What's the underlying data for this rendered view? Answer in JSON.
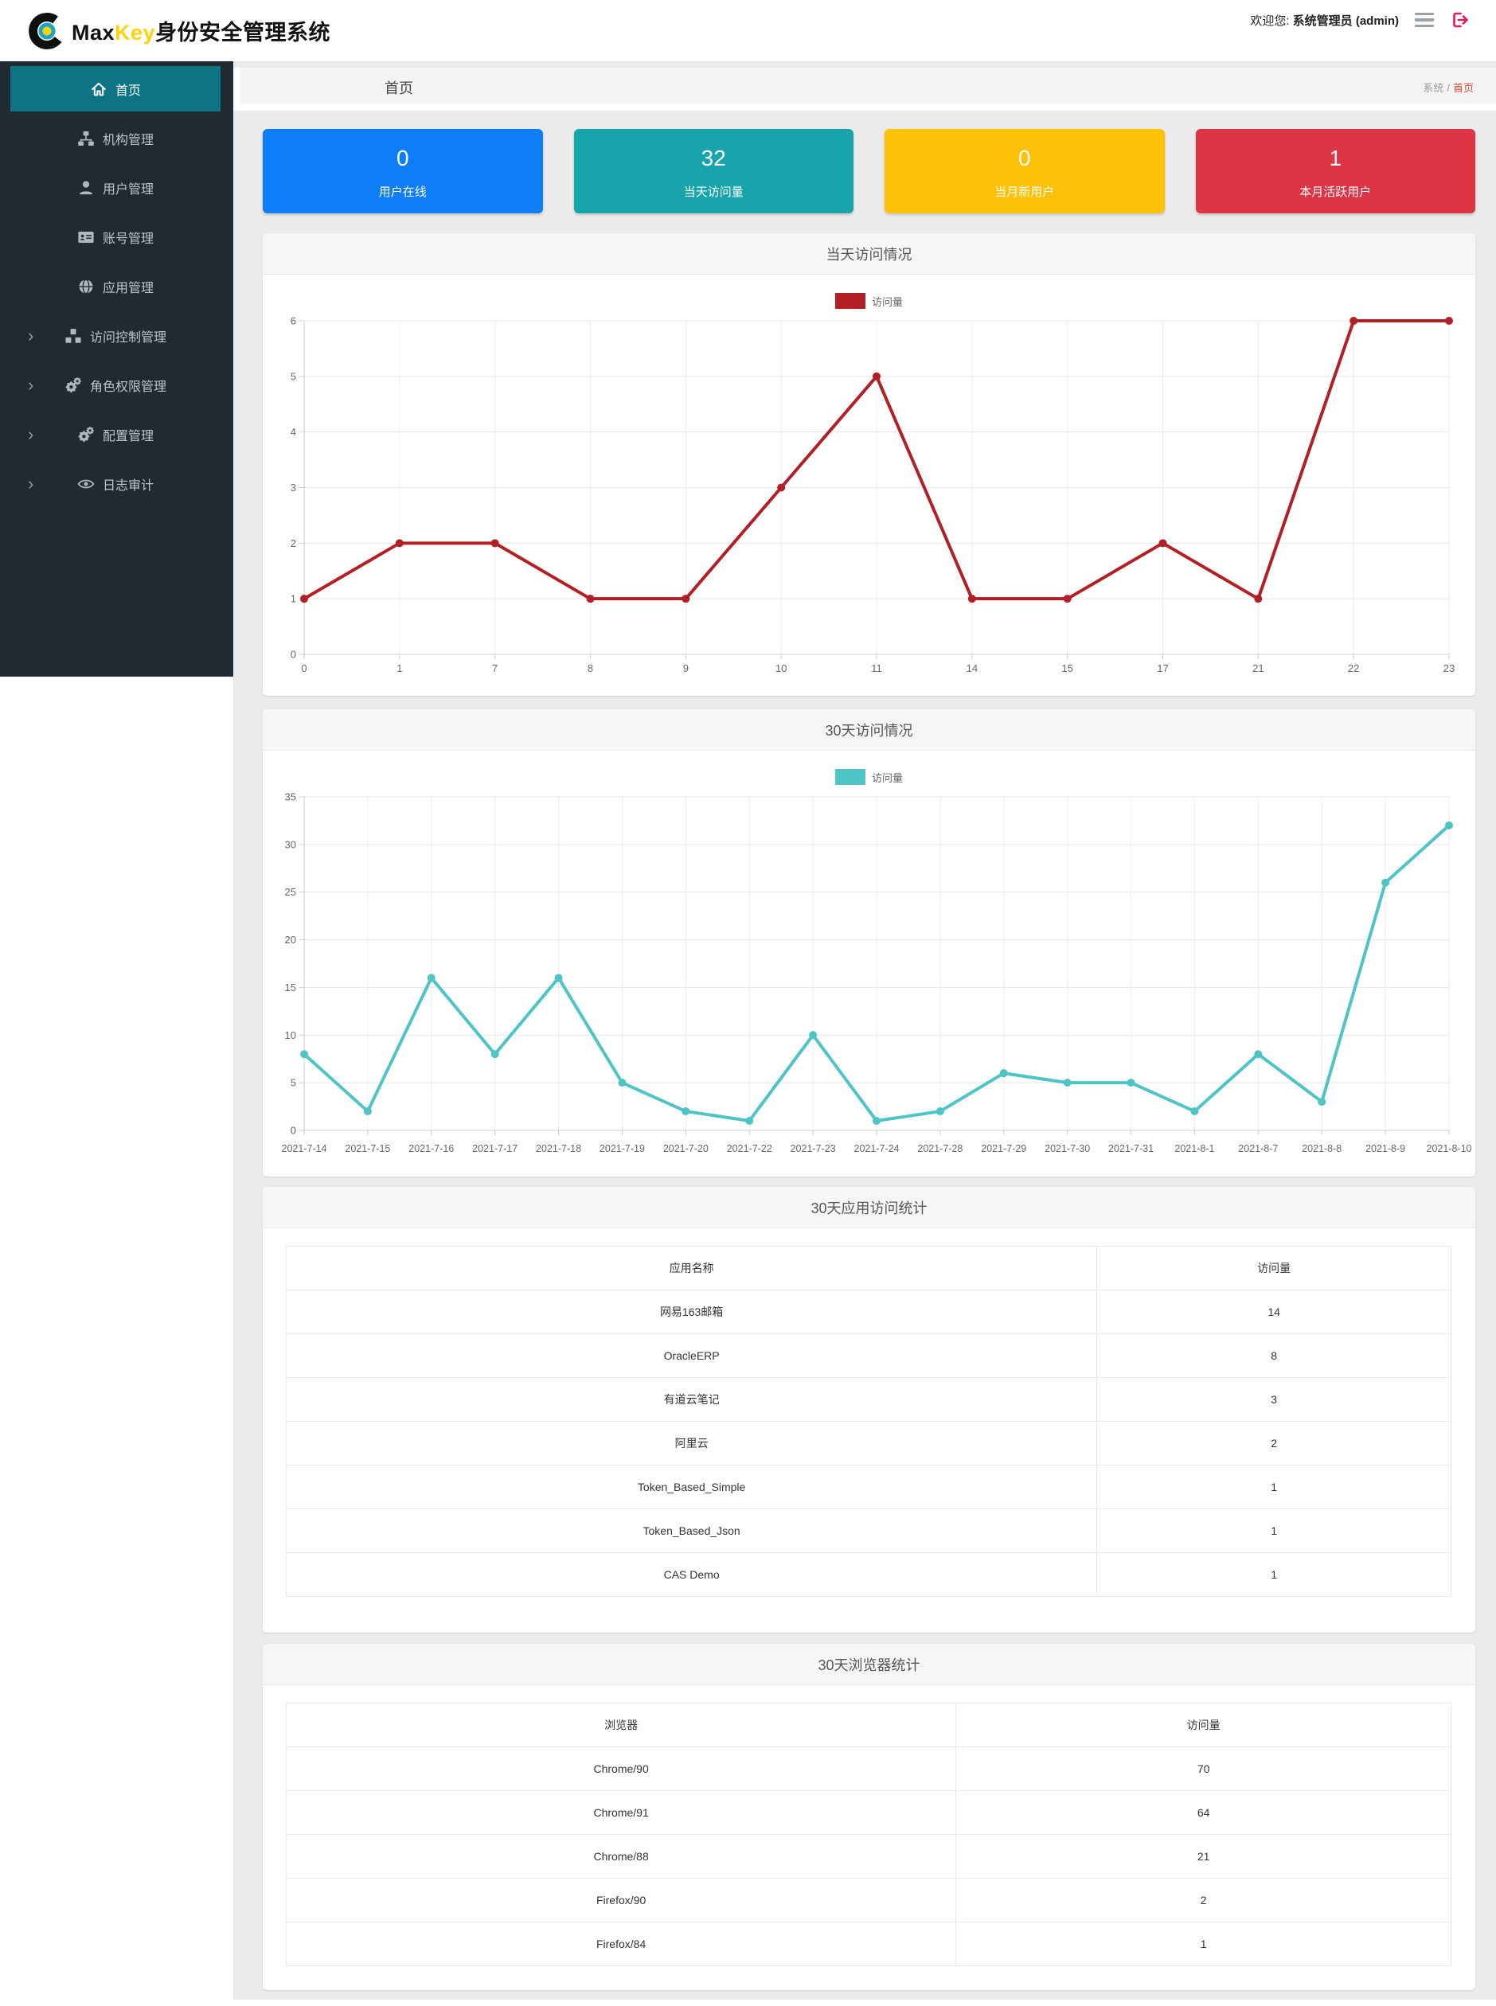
{
  "header": {
    "brand_prefix": "Max",
    "brand_accent": "Key",
    "brand_suffix": "身份安全管理系统",
    "welcome_label": "欢迎您:",
    "user": "系统管理员 (admin)",
    "colors": {
      "accent": "#ffd20a",
      "logout": "#e7175c"
    }
  },
  "sidebar": {
    "active_color": "#0d7486",
    "items": [
      {
        "key": "home",
        "label": "首页",
        "icon": "home-icon",
        "active": true,
        "expandable": false
      },
      {
        "key": "org",
        "label": "机构管理",
        "icon": "sitemap-icon",
        "active": false,
        "expandable": false
      },
      {
        "key": "user",
        "label": "用户管理",
        "icon": "user-icon",
        "active": false,
        "expandable": false
      },
      {
        "key": "account",
        "label": "账号管理",
        "icon": "idcard-icon",
        "active": false,
        "expandable": false
      },
      {
        "key": "app",
        "label": "应用管理",
        "icon": "globe-icon",
        "active": false,
        "expandable": false
      },
      {
        "key": "access",
        "label": "访问控制管理",
        "icon": "cubes-icon",
        "active": false,
        "expandable": true
      },
      {
        "key": "role",
        "label": "角色权限管理",
        "icon": "gears-icon",
        "active": false,
        "expandable": true
      },
      {
        "key": "config",
        "label": "配置管理",
        "icon": "gears-icon",
        "active": false,
        "expandable": true
      },
      {
        "key": "audit",
        "label": "日志审计",
        "icon": "eye-icon",
        "active": false,
        "expandable": true
      }
    ]
  },
  "breadcrumb": {
    "title": "首页",
    "path_root": "系统",
    "separator": "/",
    "path_current": "首页",
    "current_color": "#dd4b39"
  },
  "stats": [
    {
      "value": "0",
      "label": "用户在线",
      "color": "#0d7ef5"
    },
    {
      "value": "32",
      "label": "当天访问量",
      "color": "#18a4ab"
    },
    {
      "value": "0",
      "label": "当月新用户",
      "color": "#fdc107"
    },
    {
      "value": "1",
      "label": "本月活跃用户",
      "color": "#dc3545"
    }
  ],
  "chart_data": [
    {
      "type": "line",
      "title": "当天访问情况",
      "legend": "访问量",
      "color": "#b21f24",
      "categories": [
        "0",
        "1",
        "7",
        "8",
        "9",
        "10",
        "11",
        "14",
        "15",
        "17",
        "21",
        "22",
        "23"
      ],
      "values": [
        1,
        2,
        2,
        1,
        1,
        3,
        5,
        1,
        1,
        2,
        1,
        6,
        6
      ],
      "xlabel": "",
      "ylabel": "",
      "ylim": [
        0,
        6
      ],
      "ytick_step": 1,
      "grid": true,
      "legend_position": "top-center"
    },
    {
      "type": "line",
      "title": "30天访问情况",
      "legend": "访问量",
      "color": "#4fc4c6",
      "categories": [
        "2021-7-14",
        "2021-7-15",
        "2021-7-16",
        "2021-7-17",
        "2021-7-18",
        "2021-7-19",
        "2021-7-20",
        "2021-7-22",
        "2021-7-23",
        "2021-7-24",
        "2021-7-28",
        "2021-7-29",
        "2021-7-30",
        "2021-7-31",
        "2021-8-1",
        "2021-8-7",
        "2021-8-8",
        "2021-8-9",
        "2021-8-10"
      ],
      "values": [
        8,
        2,
        16,
        8,
        16,
        5,
        2,
        1,
        10,
        1,
        2,
        6,
        5,
        5,
        2,
        8,
        3,
        26,
        32
      ],
      "xlabel": "",
      "ylabel": "",
      "ylim": [
        0,
        35
      ],
      "ytick_step": 5,
      "grid": true,
      "legend_position": "top-center"
    }
  ],
  "tables": [
    {
      "title": "30天应用访问统计",
      "headers": [
        "应用名称",
        "访问量"
      ],
      "col_widths": [
        "69.6%",
        "30.4%"
      ],
      "rows": [
        [
          "网易163邮箱",
          "14"
        ],
        [
          "OracleERP",
          "8"
        ],
        [
          "有道云笔记",
          "3"
        ],
        [
          "阿里云",
          "2"
        ],
        [
          "Token_Based_Simple",
          "1"
        ],
        [
          "Token_Based_Json",
          "1"
        ],
        [
          "CAS Demo",
          "1"
        ]
      ]
    },
    {
      "title": "30天浏览器统计",
      "headers": [
        "浏览器",
        "访问量"
      ],
      "col_widths": [
        "57.5%",
        "42.5%"
      ],
      "rows": [
        [
          "Chrome/90",
          "70"
        ],
        [
          "Chrome/91",
          "64"
        ],
        [
          "Chrome/88",
          "21"
        ],
        [
          "Firefox/90",
          "2"
        ],
        [
          "Firefox/84",
          "1"
        ]
      ]
    }
  ]
}
